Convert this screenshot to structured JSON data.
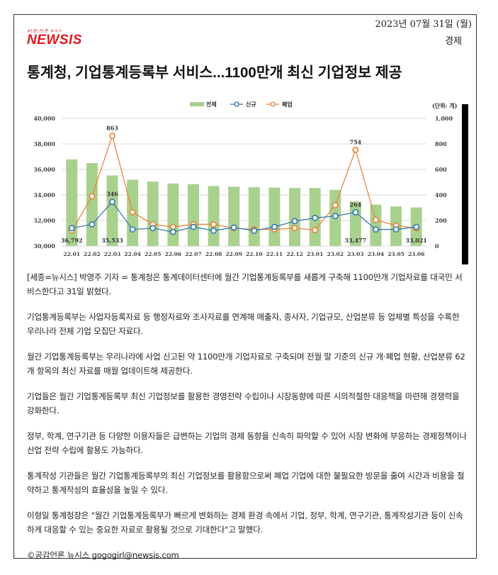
{
  "header": {
    "date": "2023년 07월 31일 (월)",
    "section": "경제",
    "logo_tag": "공|감|언|론 뉴시스",
    "logo_brand": "NEWSIS"
  },
  "headline": "통계청, 기업통계등록부 서비스...1100만개 최신 기업정보 제공",
  "chart_data": {
    "type": "bar+line",
    "title": "",
    "unit_label": "(단위: 개)",
    "legend": [
      "전체",
      "신규",
      "폐업"
    ],
    "legend_position": "top",
    "categories": [
      "22.01",
      "22.02",
      "22.03",
      "22.04",
      "22.05",
      "22.06",
      "22.07",
      "22.08",
      "22.09",
      "22.10",
      "22.11",
      "22.12",
      "23.01",
      "23.02",
      "23.03",
      "23.04",
      "23.05",
      "23.06"
    ],
    "left_axis": {
      "ylim": [
        30000,
        40000
      ],
      "ticks": [
        "30,000",
        "32,000",
        "34,000",
        "36,000",
        "38,000",
        "40,000"
      ]
    },
    "right_axis": {
      "ylim": [
        0,
        1000
      ],
      "ticks": [
        "0",
        "200",
        "400",
        "600",
        "800",
        "1,000"
      ]
    },
    "grid": true,
    "series": [
      {
        "name": "전체",
        "type": "bar",
        "axis": "left",
        "color": "#a9d18e",
        "values": [
          36792,
          36500,
          35533,
          35200,
          35050,
          34900,
          34850,
          34700,
          34650,
          34600,
          34580,
          34550,
          34550,
          34400,
          33477,
          33250,
          33100,
          33021
        ]
      },
      {
        "name": "신규",
        "type": "line",
        "axis": "right",
        "color": "#2e75b6",
        "values": [
          140,
          170,
          346,
          130,
          140,
          110,
          150,
          120,
          145,
          120,
          150,
          195,
          220,
          235,
          264,
          130,
          130,
          150
        ]
      },
      {
        "name": "폐업",
        "type": "line",
        "axis": "right",
        "color": "#ed7d31",
        "values": [
          120,
          390,
          863,
          265,
          170,
          150,
          170,
          170,
          140,
          130,
          130,
          140,
          125,
          320,
          754,
          205,
          160,
          140
        ]
      }
    ],
    "annotations": [
      {
        "series": "전체",
        "category": "22.01",
        "text": "36,792"
      },
      {
        "series": "전체",
        "category": "22.03",
        "text": "35,533"
      },
      {
        "series": "전체",
        "category": "23.03",
        "text": "33,477"
      },
      {
        "series": "전체",
        "category": "23.06",
        "text": "33,021"
      },
      {
        "series": "신규",
        "category": "22.03",
        "text": "346"
      },
      {
        "series": "신규",
        "category": "23.03",
        "text": "264"
      },
      {
        "series": "폐업",
        "category": "22.03",
        "text": "863"
      },
      {
        "series": "폐업",
        "category": "23.03",
        "text": "754"
      }
    ]
  },
  "article": {
    "paragraphs": [
      "[세종=뉴시스] 박영주 기자 = 통계청은 통계데이터센터에 월간 기업통계등록부를 새롭게 구축해 1100만개 기업자료를 대국민 서비스한다고 31일 밝혔다.",
      "기업통계등록부는 사업자등록자료 등 행정자료와 조사자료를 연계해 매출자, 종사자, 기업규모, 산업분류 등 업체별 특성을 수록한 우리나라 전체 기업 모집단 자료다.",
      "월간 기업통계등록부는 우리나라에 사업 신고된 약 1100만개 기업자료로 구축되며 전월 말 기준의 신규 개·폐업 현황, 산업분류 62개 항목의 최신 자료를 매월 업데이트해 제공한다.",
      "기업들은 월간 기업통계등록부 최신 기업정보를 활용한 경영전략 수립이나 시장동향에 따른 시의적절한 대응책을 마련해 경쟁력을 강화한다.",
      "정부, 학계, 연구기관 등 다양한 이용자들은 급변하는 기업의 경제 동향을 신속히 파악할 수 있어 시장 변화에 부응하는 경제정책이나 산업 전략 수립에 활용도 가능하다.",
      "통계작성 기관들은 월간 기업통계등록부의 최신 기업정보를 활용함으로써 폐업 기업에 대한 불필요한 방문을 줄여 시간과 비용을 절약하고 통계작성의 효율성을 높일 수 있다.",
      "이형일 통계청장은 \"월간 기업통계등록부가 빠르게 변화하는 경제 환경 속에서 기업, 정부, 학계, 연구기관, 통계작성기관 등이 신속하게 대응할 수 있는 중요한 자료로 활용될 것으로 기대한다\"고 말했다.",
      "©공감언론 뉴시스 gogogirl@newsis.com"
    ]
  }
}
